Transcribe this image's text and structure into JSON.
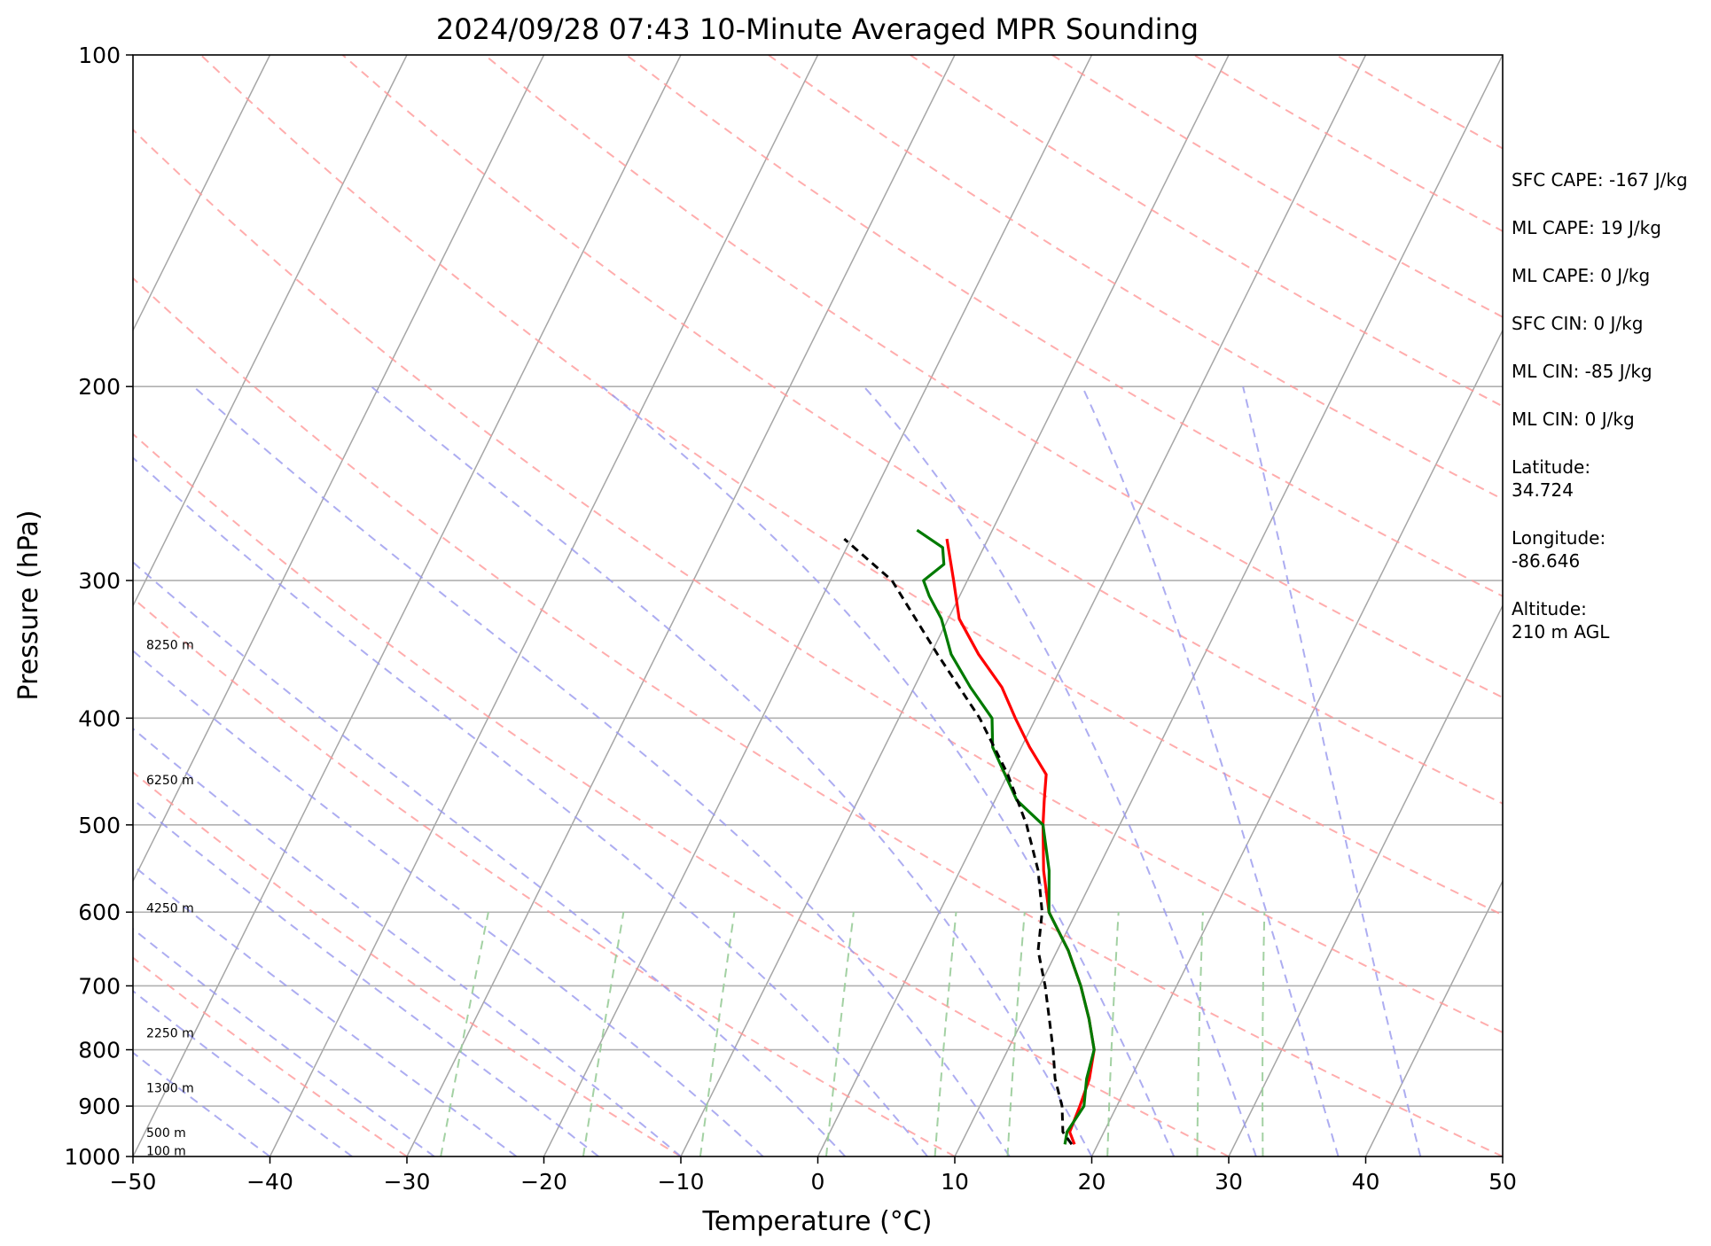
{
  "chart_data": {
    "type": "line",
    "chart_kind": "skew-T log-P sounding",
    "title": "2024/09/28 07:43 10-Minute Averaged MPR Sounding",
    "xlabel": "Temperature (°C)",
    "ylabel": "Pressure (hPa)",
    "xlim": [
      -50,
      50
    ],
    "ylim": [
      1000,
      100
    ],
    "y_scale": "log",
    "x_ticks": [
      -50,
      -40,
      -30,
      -20,
      -10,
      0,
      10,
      20,
      30,
      40,
      50
    ],
    "x_tick_labels": [
      "−50",
      "−40",
      "−30",
      "−20",
      "−10",
      "0",
      "10",
      "20",
      "30",
      "40",
      "50"
    ],
    "y_ticks": [
      1000,
      900,
      800,
      700,
      600,
      500,
      400,
      300,
      200,
      100
    ],
    "y_tick_labels": [
      "1000",
      "900",
      "800",
      "700",
      "600",
      "500",
      "400",
      "300",
      "200",
      "100"
    ],
    "grid": true,
    "height_labels": [
      {
        "text": "100 m",
        "pressure": 988
      },
      {
        "text": "500 m",
        "pressure": 951
      },
      {
        "text": "1300 m",
        "pressure": 866
      },
      {
        "text": "2250 m",
        "pressure": 772
      },
      {
        "text": "4250 m",
        "pressure": 595
      },
      {
        "text": "6250 m",
        "pressure": 455
      },
      {
        "text": "8250 m",
        "pressure": 343
      }
    ],
    "colors": {
      "temperature": "#ff0000",
      "dewpoint": "#007a00",
      "parcel": "#000000",
      "isotherm": "#a6a6a6",
      "dry_adiabat": "#ff9999",
      "moist_adiabat": "#9999ee",
      "mixing_ratio": "#99cc99",
      "isobar": "#b0b0b0"
    },
    "series": [
      {
        "key": "temperature",
        "points": [
          {
            "p": 975,
            "t": 18.3
          },
          {
            "p": 950,
            "t": 17.5
          },
          {
            "p": 900,
            "t": 17.3
          },
          {
            "p": 850,
            "t": 17.0
          },
          {
            "p": 800,
            "t": 16.3
          },
          {
            "p": 750,
            "t": 14.8
          },
          {
            "p": 700,
            "t": 13.0
          },
          {
            "p": 650,
            "t": 10.8
          },
          {
            "p": 600,
            "t": 8.0
          },
          {
            "p": 550,
            "t": 6.1
          },
          {
            "p": 500,
            "t": 4.4
          },
          {
            "p": 475,
            "t": 3.6
          },
          {
            "p": 450,
            "t": 2.8
          },
          {
            "p": 425,
            "t": 0.6
          },
          {
            "p": 400,
            "t": -1.5
          },
          {
            "p": 375,
            "t": -3.6
          },
          {
            "p": 350,
            "t": -6.5
          },
          {
            "p": 325,
            "t": -9.2
          },
          {
            "p": 300,
            "t": -11.0
          },
          {
            "p": 275,
            "t": -13.0
          }
        ]
      },
      {
        "key": "dewpoint",
        "points": [
          {
            "p": 975,
            "t": 17.6
          },
          {
            "p": 950,
            "t": 17.3
          },
          {
            "p": 900,
            "t": 17.6
          },
          {
            "p": 850,
            "t": 16.8
          },
          {
            "p": 800,
            "t": 16.3
          },
          {
            "p": 750,
            "t": 14.8
          },
          {
            "p": 700,
            "t": 13.0
          },
          {
            "p": 650,
            "t": 10.8
          },
          {
            "p": 600,
            "t": 8.0
          },
          {
            "p": 550,
            "t": 6.5
          },
          {
            "p": 500,
            "t": 4.4
          },
          {
            "p": 475,
            "t": 1.6
          },
          {
            "p": 450,
            "t": -0.2
          },
          {
            "p": 425,
            "t": -2.1
          },
          {
            "p": 400,
            "t": -3.2
          },
          {
            "p": 375,
            "t": -5.9
          },
          {
            "p": 350,
            "t": -8.5
          },
          {
            "p": 325,
            "t": -10.5
          },
          {
            "p": 310,
            "t": -12.2
          },
          {
            "p": 300,
            "t": -13.2
          },
          {
            "p": 290,
            "t": -12.3
          },
          {
            "p": 280,
            "t": -13.0
          },
          {
            "p": 270,
            "t": -15.5
          }
        ]
      },
      {
        "key": "parcel",
        "dashed": true,
        "points": [
          {
            "p": 975,
            "t": 18.1
          },
          {
            "p": 950,
            "t": 17.0
          },
          {
            "p": 900,
            "t": 16.0
          },
          {
            "p": 850,
            "t": 14.5
          },
          {
            "p": 800,
            "t": 13.3
          },
          {
            "p": 750,
            "t": 11.9
          },
          {
            "p": 700,
            "t": 10.4
          },
          {
            "p": 650,
            "t": 8.6
          },
          {
            "p": 600,
            "t": 7.5
          },
          {
            "p": 550,
            "t": 5.7
          },
          {
            "p": 500,
            "t": 3.2
          },
          {
            "p": 450,
            "t": 0.0
          },
          {
            "p": 400,
            "t": -4.1
          },
          {
            "p": 350,
            "t": -9.5
          },
          {
            "p": 300,
            "t": -15.5
          },
          {
            "p": 275,
            "t": -20.5
          }
        ]
      }
    ],
    "info": [
      "SFC CAPE: -167 J/kg",
      "ML CAPE: 19 J/kg",
      "ML CAPE: 0 J/kg",
      "SFC CIN: 0 J/kg",
      "ML CIN: -85 J/kg",
      "ML CIN: 0 J/kg",
      "Latitude:\n34.724",
      "Longitude:\n-86.646",
      "Altitude:\n210 m AGL"
    ]
  }
}
